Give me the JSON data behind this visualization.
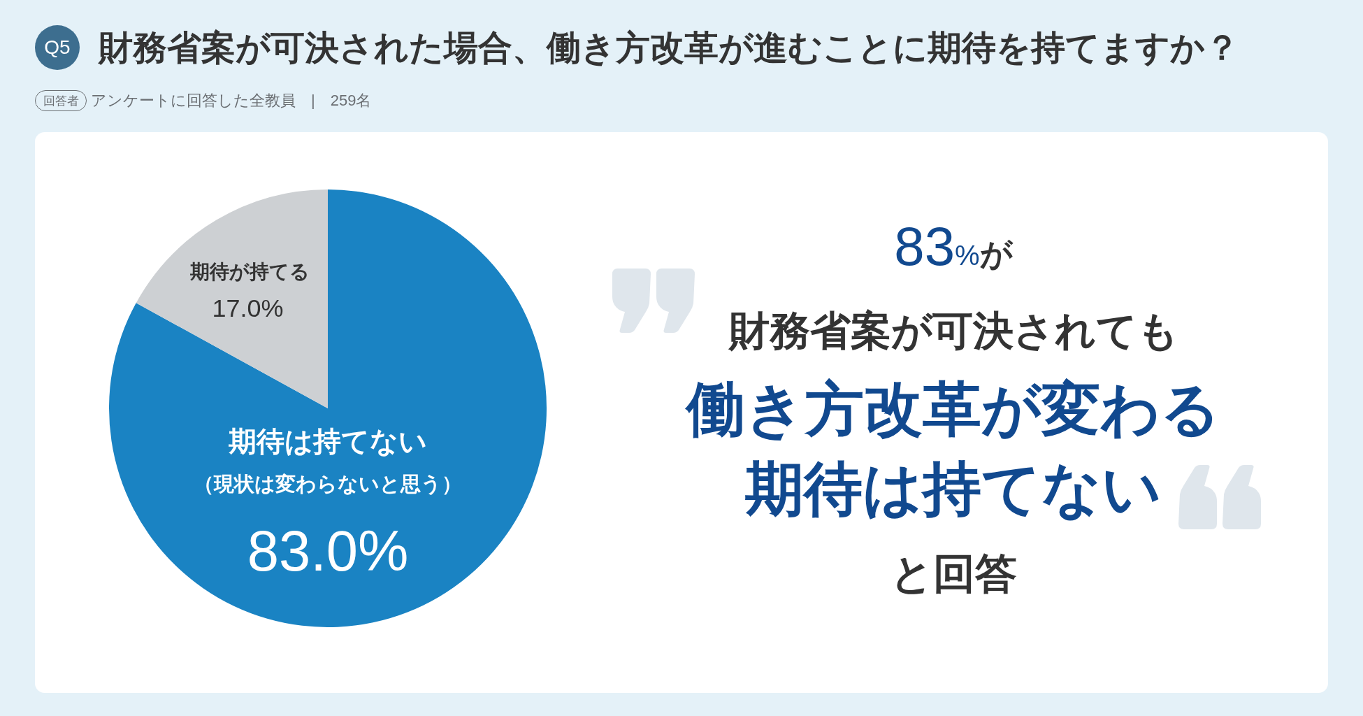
{
  "chart_data": {
    "type": "pie",
    "title": "財務省案が可決された場合、働き方改革が進むことに期待を持てますか？",
    "subtitle": "アンケートに回答した全教員　|　259名",
    "categories": [
      "期待は持てない（現状は変わらないと思う）",
      "期待が持てる"
    ],
    "values": [
      83.0,
      17.0
    ],
    "colors": [
      "#1a83c3",
      "#cdd0d3"
    ],
    "value_labels": [
      "83.0%",
      "17.0%"
    ],
    "annotations": [
      "Q5",
      "回答者",
      "83%が",
      "財務省案が可決されても",
      "働き方改革が変わる",
      "期待は持てない",
      "と回答"
    ]
  }
}
